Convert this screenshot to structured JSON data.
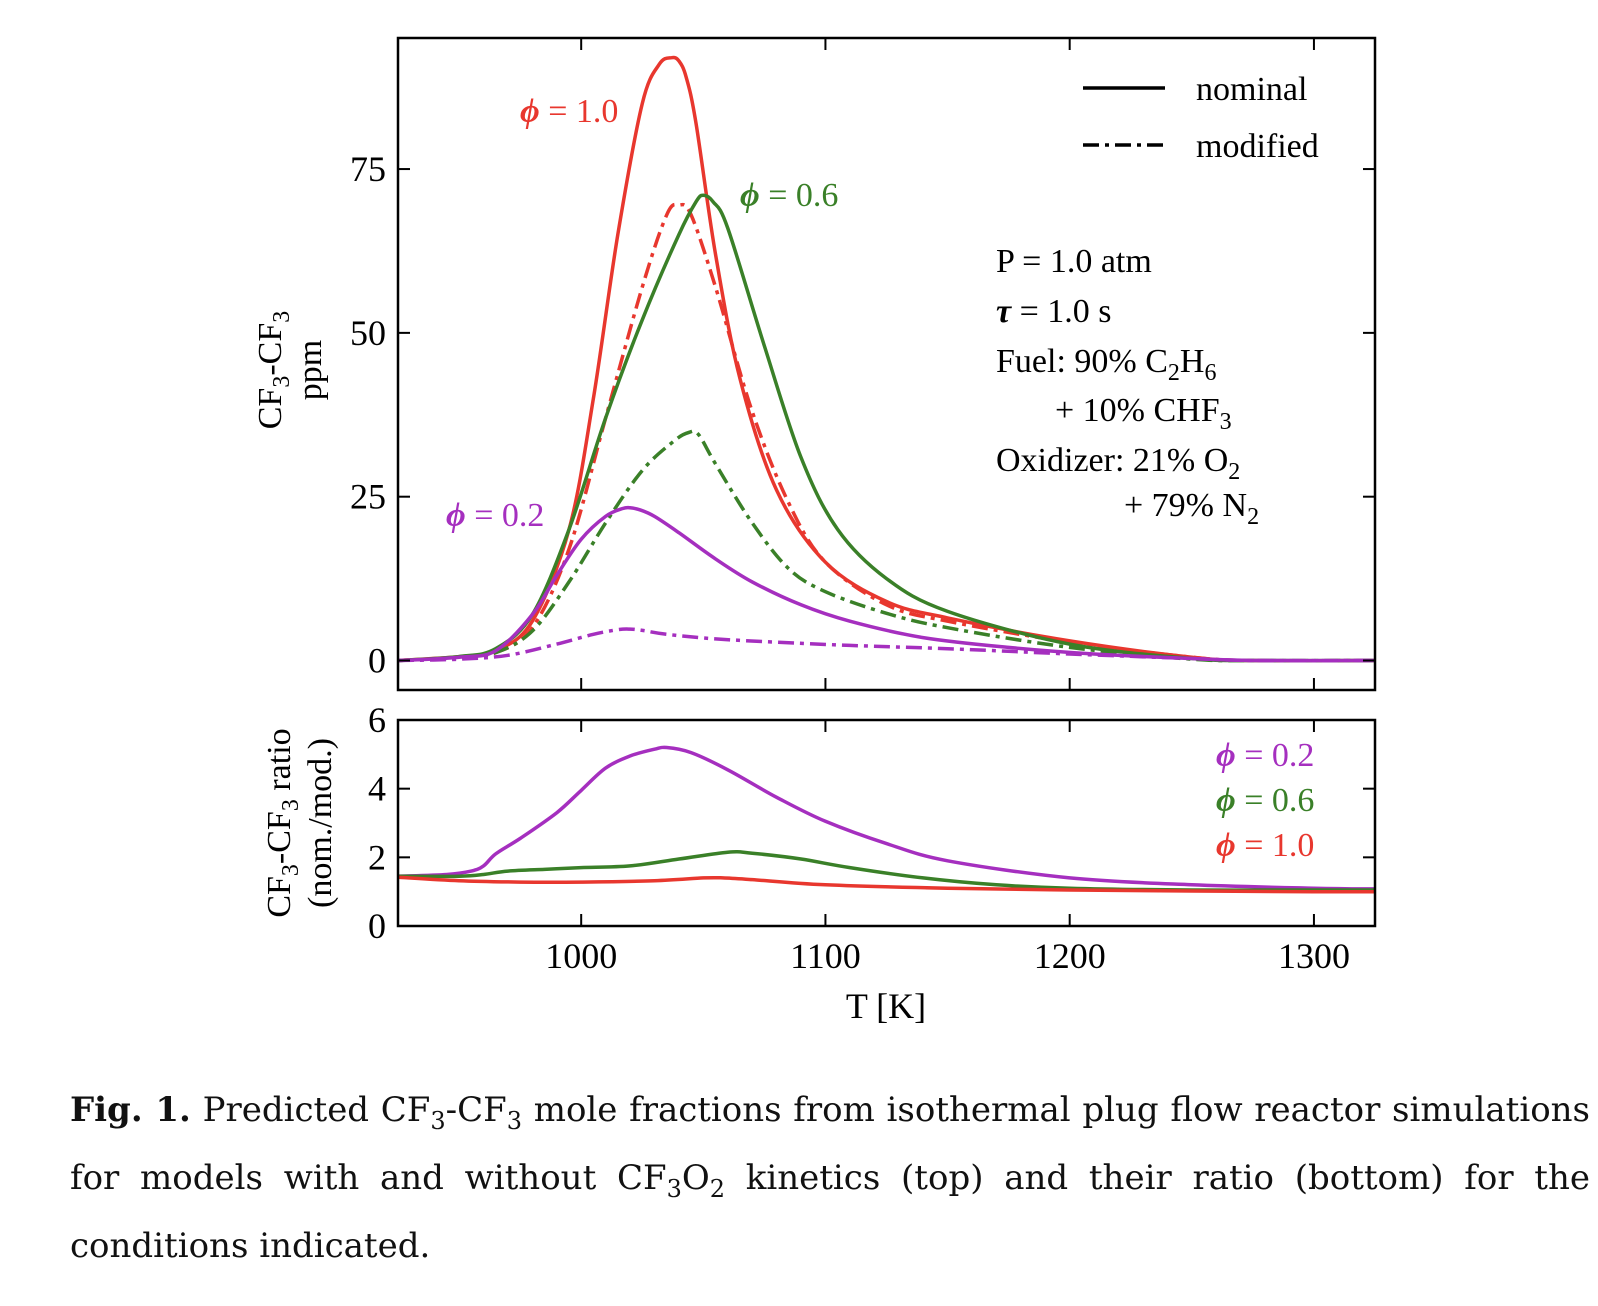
{
  "chart_data": [
    {
      "type": "line",
      "xlim": [
        925,
        1325
      ],
      "ylim": [
        -4.5,
        95
      ],
      "yticks": [
        0,
        25,
        50,
        75
      ],
      "ylabel_line1": "CF3-CF3",
      "ylabel_line2": "ppm",
      "legend": {
        "position": "top-right",
        "nominal": "nominal",
        "modified": "modified"
      },
      "conditions": {
        "pressure": "P = 1.0 atm",
        "tau": "= 1.0 s",
        "fuel_line1": "Fuel: 90% C2H6",
        "fuel_line2": "+ 10% CHF3",
        "oxidizer_line1": "Oxidizer: 21% O2",
        "oxidizer_line2": "+ 79% N2"
      },
      "series": [
        {
          "name": "φ = 1.0",
          "style": "nominal",
          "color": "#e8372e",
          "x": [
            925,
            950,
            965,
            980,
            995,
            1005,
            1015,
            1025,
            1032,
            1037,
            1040,
            1043,
            1047,
            1055,
            1065,
            1080,
            1100,
            1125,
            1150,
            1200,
            1250,
            1275,
            1325
          ],
          "y": [
            0,
            0.6,
            1.5,
            6,
            20,
            40,
            65,
            85,
            91,
            92,
            91.5,
            89,
            82,
            62,
            43,
            26,
            15,
            9,
            6.5,
            3,
            0.5,
            0,
            0
          ]
        },
        {
          "name": "φ = 1.0",
          "style": "modified",
          "color": "#e8372e",
          "x": [
            925,
            950,
            965,
            980,
            995,
            1010,
            1025,
            1035,
            1040,
            1045,
            1055,
            1070,
            1085,
            1100,
            1125,
            1150,
            1200,
            1250,
            1275,
            1325
          ],
          "y": [
            0,
            0.5,
            1.2,
            5,
            17,
            37,
            57,
            68,
            69.5,
            68,
            57,
            38,
            24,
            15,
            8.5,
            6,
            2.8,
            0.5,
            0,
            0
          ]
        },
        {
          "name": "φ = 0.6",
          "style": "nominal",
          "color": "#3a8028",
          "x": [
            925,
            950,
            965,
            980,
            995,
            1010,
            1025,
            1040,
            1047,
            1050,
            1054,
            1060,
            1075,
            1090,
            1105,
            1125,
            1150,
            1200,
            1250,
            1275,
            1325
          ],
          "y": [
            0,
            0.6,
            1.8,
            7,
            20,
            37,
            52,
            65,
            70,
            71,
            70,
            66,
            48,
            31,
            20,
            12.5,
            7.5,
            2.5,
            0.3,
            0,
            0
          ]
        },
        {
          "name": "φ = 0.6",
          "style": "modified",
          "color": "#3a8028",
          "x": [
            925,
            950,
            965,
            980,
            995,
            1010,
            1025,
            1038,
            1044,
            1048,
            1055,
            1070,
            1085,
            1100,
            1125,
            1150,
            1200,
            1250,
            1275,
            1325
          ],
          "y": [
            0,
            0.4,
            1.2,
            4.5,
            12,
            21,
            29,
            33.5,
            34.8,
            34.5,
            30,
            21,
            14,
            10.5,
            7.2,
            5,
            2,
            0.2,
            0,
            0
          ]
        },
        {
          "name": "φ = 0.2",
          "style": "nominal",
          "color": "#a52fbf",
          "x": [
            925,
            950,
            965,
            980,
            990,
            1000,
            1010,
            1017,
            1020,
            1024,
            1030,
            1040,
            1055,
            1070,
            1090,
            1110,
            1140,
            1175,
            1210,
            1250,
            1275,
            1325
          ],
          "y": [
            0,
            0.5,
            1.5,
            7,
            13,
            18.5,
            22,
            23.2,
            23.3,
            23,
            22,
            19.5,
            15.5,
            12,
            8.5,
            6,
            3.5,
            2,
            1,
            0.3,
            0,
            0
          ]
        },
        {
          "name": "φ = 0.2",
          "style": "modified",
          "color": "#a52fbf",
          "x": [
            925,
            950,
            970,
            990,
            1005,
            1015,
            1020,
            1025,
            1035,
            1055,
            1080,
            1110,
            1150,
            1200,
            1250,
            1275,
            1325
          ],
          "y": [
            0,
            0.2,
            0.8,
            2.5,
            4,
            4.7,
            4.8,
            4.6,
            4,
            3.3,
            2.8,
            2.3,
            1.8,
            1,
            0.3,
            0,
            0
          ]
        }
      ],
      "annotations": [
        {
          "text": "= 1.0",
          "series": "φ = 1.0",
          "color": "#e8372e"
        },
        {
          "text": "= 0.6",
          "series": "φ = 0.6",
          "color": "#3a8028"
        },
        {
          "text": "= 0.2",
          "series": "φ = 0.2",
          "color": "#a52fbf"
        }
      ]
    },
    {
      "type": "line",
      "xlim": [
        925,
        1325
      ],
      "ylim": [
        0,
        6
      ],
      "xticks": [
        1000,
        1100,
        1200,
        1300
      ],
      "yticks": [
        0,
        2,
        4,
        6
      ],
      "xlabel": "T [K]",
      "ylabel_line1": "CF3-CF3 ratio",
      "ylabel_line2": "(nom./mod.)",
      "legend": {
        "position": "top-right",
        "entries": [
          "= 0.2",
          "= 0.6",
          "= 1.0"
        ]
      },
      "series": [
        {
          "name": "φ = 0.2",
          "color": "#a52fbf",
          "x": [
            925,
            945,
            955,
            960,
            965,
            975,
            990,
            1000,
            1010,
            1020,
            1030,
            1035,
            1045,
            1060,
            1080,
            1100,
            1125,
            1150,
            1200,
            1250,
            1300,
            1325
          ],
          "y": [
            1.45,
            1.5,
            1.6,
            1.75,
            2.1,
            2.55,
            3.3,
            3.95,
            4.6,
            4.95,
            5.15,
            5.2,
            5.05,
            4.55,
            3.75,
            3.05,
            2.4,
            1.9,
            1.4,
            1.2,
            1.1,
            1.08
          ]
        },
        {
          "name": "φ = 0.6",
          "color": "#3a8028",
          "x": [
            925,
            950,
            960,
            970,
            985,
            1000,
            1020,
            1040,
            1060,
            1070,
            1090,
            1110,
            1140,
            1170,
            1200,
            1250,
            1300,
            1325
          ],
          "y": [
            1.45,
            1.45,
            1.5,
            1.6,
            1.65,
            1.7,
            1.75,
            1.95,
            2.15,
            2.12,
            1.95,
            1.7,
            1.4,
            1.2,
            1.1,
            1.05,
            1.05,
            1.05
          ]
        },
        {
          "name": "φ = 1.0",
          "color": "#e8372e",
          "x": [
            925,
            950,
            975,
            1000,
            1030,
            1050,
            1058,
            1070,
            1100,
            1150,
            1200,
            1250,
            1300,
            1325
          ],
          "y": [
            1.42,
            1.32,
            1.28,
            1.28,
            1.32,
            1.4,
            1.4,
            1.35,
            1.2,
            1.1,
            1.05,
            1.02,
            1.0,
            1.0
          ]
        }
      ]
    }
  ],
  "caption": {
    "label": "Fig. 1.",
    "text": "Predicted CF3-CF3 mole fractions from isothermal plug flow reactor simulations for models with and without CF3O2 kinetics (top) and their ratio (bottom) for the conditions indicated."
  }
}
